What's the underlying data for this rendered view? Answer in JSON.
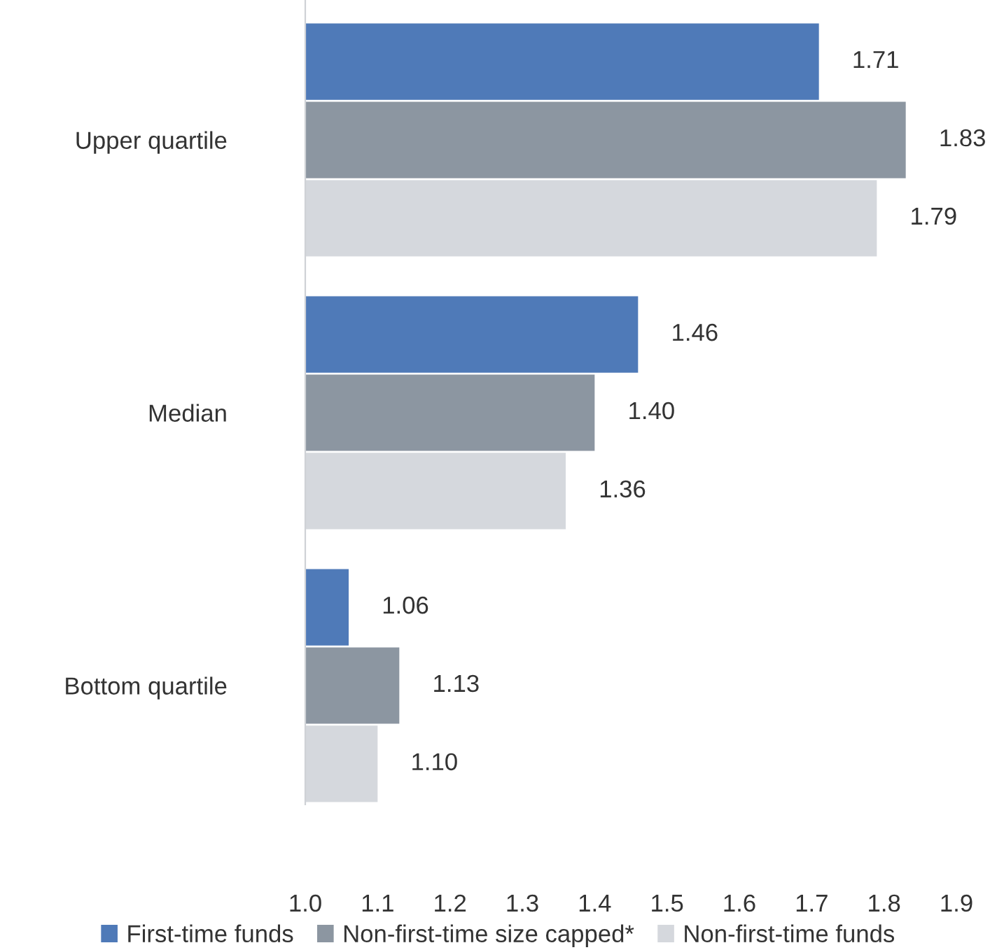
{
  "chart_data": {
    "type": "bar",
    "orientation": "horizontal",
    "categories": [
      "Upper quartile",
      "Median",
      "Bottom quartile"
    ],
    "series": [
      {
        "name": "First-time funds",
        "color": "#4f7ab8",
        "values": [
          1.71,
          1.46,
          1.06
        ],
        "value_labels": [
          "1.71",
          "1.46",
          "1.06"
        ]
      },
      {
        "name": "Non-first-time size capped*",
        "color": "#8c96a1",
        "values": [
          1.83,
          1.4,
          1.13
        ],
        "value_labels": [
          "1.83",
          "1.40",
          "1.13"
        ]
      },
      {
        "name": "Non-first-time funds",
        "color": "#d5d8dd",
        "values": [
          1.79,
          1.36,
          1.1
        ],
        "value_labels": [
          "1.79",
          "1.36",
          "1.10"
        ]
      }
    ],
    "xlim": [
      1.0,
      1.9
    ],
    "xticks": [
      {
        "value": 1.0,
        "label": "1.0"
      },
      1.1,
      1.2,
      1.3,
      1.4,
      1.5,
      1.6,
      1.7,
      1.8,
      1.9
    ],
    "grid": false,
    "legend": "bottom"
  }
}
